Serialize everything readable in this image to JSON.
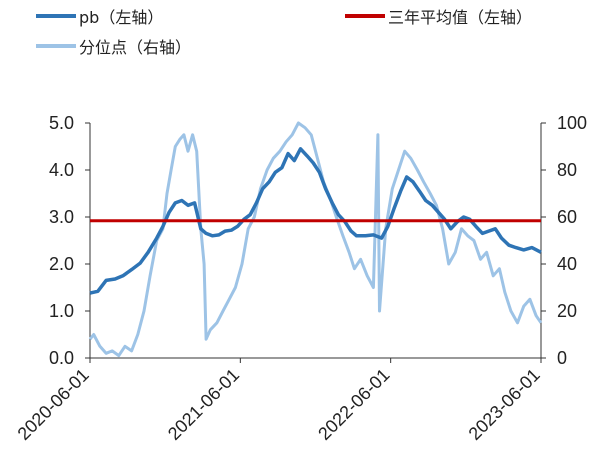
{
  "colors": {
    "pb": "#2e74b5",
    "avg": "#c00000",
    "percentile": "#9dc3e6"
  },
  "legend": [
    {
      "label": "pb（左轴）",
      "color": "#2e74b5"
    },
    {
      "label": "三年平均值（左轴）",
      "color": "#c00000"
    },
    {
      "label": "分位点（右轴）",
      "color": "#9dc3e6"
    }
  ],
  "chart_data": {
    "type": "line",
    "x_start": "2020-06-01",
    "x_end": "2023-06-01",
    "x_ticks": [
      "2020-06-01",
      "2021-06-01",
      "2022-06-01",
      "2023-06-01"
    ],
    "y_left": {
      "range": [
        0,
        5
      ],
      "ticks": [
        "0.0",
        "1.0",
        "2.0",
        "3.0",
        "4.0",
        "5.0"
      ]
    },
    "y_right": {
      "range": [
        0,
        100
      ],
      "ticks": [
        "0",
        "20",
        "40",
        "60",
        "80",
        "100"
      ]
    },
    "legend_position": "top",
    "grid": false,
    "series": [
      {
        "name": "pb（左轴）",
        "axis": "left",
        "points": [
          [
            "2020-06-01",
            1.38
          ],
          [
            "2020-06-20",
            1.42
          ],
          [
            "2020-07-10",
            1.65
          ],
          [
            "2020-08-01",
            1.68
          ],
          [
            "2020-08-20",
            1.75
          ],
          [
            "2020-09-10",
            1.88
          ],
          [
            "2020-10-01",
            2.02
          ],
          [
            "2020-10-20",
            2.25
          ],
          [
            "2020-11-10",
            2.55
          ],
          [
            "2020-11-25",
            2.8
          ],
          [
            "2020-12-10",
            3.1
          ],
          [
            "2020-12-25",
            3.3
          ],
          [
            "2021-01-10",
            3.35
          ],
          [
            "2021-01-25",
            3.25
          ],
          [
            "2021-02-10",
            3.3
          ],
          [
            "2021-02-25",
            2.75
          ],
          [
            "2021-03-10",
            2.65
          ],
          [
            "2021-03-25",
            2.6
          ],
          [
            "2021-04-10",
            2.62
          ],
          [
            "2021-04-25",
            2.7
          ],
          [
            "2021-05-10",
            2.72
          ],
          [
            "2021-05-25",
            2.8
          ],
          [
            "2021-06-10",
            2.95
          ],
          [
            "2021-06-25",
            3.05
          ],
          [
            "2021-07-10",
            3.3
          ],
          [
            "2021-07-25",
            3.6
          ],
          [
            "2021-08-10",
            3.75
          ],
          [
            "2021-08-25",
            3.95
          ],
          [
            "2021-09-10",
            4.05
          ],
          [
            "2021-09-25",
            4.35
          ],
          [
            "2021-10-10",
            4.2
          ],
          [
            "2021-10-25",
            4.45
          ],
          [
            "2021-11-10",
            4.3
          ],
          [
            "2021-11-25",
            4.15
          ],
          [
            "2021-12-10",
            3.95
          ],
          [
            "2021-12-25",
            3.6
          ],
          [
            "2022-01-10",
            3.3
          ],
          [
            "2022-01-25",
            3.05
          ],
          [
            "2022-02-10",
            2.9
          ],
          [
            "2022-02-25",
            2.7
          ],
          [
            "2022-03-10",
            2.6
          ],
          [
            "2022-04-01",
            2.6
          ],
          [
            "2022-04-20",
            2.62
          ],
          [
            "2022-05-10",
            2.55
          ],
          [
            "2022-05-25",
            2.8
          ],
          [
            "2022-06-10",
            3.2
          ],
          [
            "2022-06-25",
            3.55
          ],
          [
            "2022-07-10",
            3.85
          ],
          [
            "2022-07-25",
            3.75
          ],
          [
            "2022-08-10",
            3.55
          ],
          [
            "2022-08-25",
            3.35
          ],
          [
            "2022-09-10",
            3.25
          ],
          [
            "2022-09-25",
            3.1
          ],
          [
            "2022-10-10",
            2.95
          ],
          [
            "2022-10-25",
            2.75
          ],
          [
            "2022-11-10",
            2.9
          ],
          [
            "2022-11-25",
            3.0
          ],
          [
            "2022-12-10",
            2.95
          ],
          [
            "2022-12-25",
            2.8
          ],
          [
            "2023-01-10",
            2.65
          ],
          [
            "2023-01-25",
            2.7
          ],
          [
            "2023-02-10",
            2.75
          ],
          [
            "2023-02-25",
            2.55
          ],
          [
            "2023-03-15",
            2.4
          ],
          [
            "2023-04-01",
            2.35
          ],
          [
            "2023-04-20",
            2.3
          ],
          [
            "2023-05-10",
            2.35
          ],
          [
            "2023-06-01",
            2.25
          ]
        ]
      },
      {
        "name": "三年平均值（左轴）",
        "axis": "left",
        "points": [
          [
            "2020-06-01",
            2.92
          ],
          [
            "2023-06-01",
            2.92
          ]
        ]
      },
      {
        "name": "分位点（右轴）",
        "axis": "right",
        "points": [
          [
            "2020-06-01",
            8
          ],
          [
            "2020-06-10",
            10
          ],
          [
            "2020-06-25",
            5
          ],
          [
            "2020-07-10",
            2
          ],
          [
            "2020-07-25",
            3
          ],
          [
            "2020-08-10",
            1
          ],
          [
            "2020-08-25",
            5
          ],
          [
            "2020-09-10",
            3
          ],
          [
            "2020-09-25",
            10
          ],
          [
            "2020-10-10",
            20
          ],
          [
            "2020-10-25",
            35
          ],
          [
            "2020-11-10",
            50
          ],
          [
            "2020-11-25",
            55
          ],
          [
            "2020-12-05",
            70
          ],
          [
            "2020-12-15",
            80
          ],
          [
            "2020-12-25",
            90
          ],
          [
            "2021-01-05",
            93
          ],
          [
            "2021-01-15",
            95
          ],
          [
            "2021-01-25",
            88
          ],
          [
            "2021-02-05",
            95
          ],
          [
            "2021-02-15",
            88
          ],
          [
            "2021-02-25",
            55
          ],
          [
            "2021-03-05",
            40
          ],
          [
            "2021-03-10",
            8
          ],
          [
            "2021-03-20",
            12
          ],
          [
            "2021-04-05",
            15
          ],
          [
            "2021-04-20",
            20
          ],
          [
            "2021-05-05",
            25
          ],
          [
            "2021-05-20",
            30
          ],
          [
            "2021-06-05",
            40
          ],
          [
            "2021-06-20",
            55
          ],
          [
            "2021-07-05",
            60
          ],
          [
            "2021-07-20",
            72
          ],
          [
            "2021-08-05",
            80
          ],
          [
            "2021-08-20",
            85
          ],
          [
            "2021-09-05",
            88
          ],
          [
            "2021-09-20",
            92
          ],
          [
            "2021-10-05",
            95
          ],
          [
            "2021-10-20",
            100
          ],
          [
            "2021-11-05",
            98
          ],
          [
            "2021-11-20",
            95
          ],
          [
            "2021-12-05",
            85
          ],
          [
            "2021-12-20",
            75
          ],
          [
            "2022-01-05",
            68
          ],
          [
            "2022-01-20",
            60
          ],
          [
            "2022-02-05",
            52
          ],
          [
            "2022-02-20",
            45
          ],
          [
            "2022-03-05",
            38
          ],
          [
            "2022-03-20",
            42
          ],
          [
            "2022-04-05",
            35
          ],
          [
            "2022-04-20",
            30
          ],
          [
            "2022-05-01",
            95
          ],
          [
            "2022-05-05",
            20
          ],
          [
            "2022-05-20",
            55
          ],
          [
            "2022-06-05",
            72
          ],
          [
            "2022-06-20",
            80
          ],
          [
            "2022-07-05",
            88
          ],
          [
            "2022-07-20",
            85
          ],
          [
            "2022-08-05",
            80
          ],
          [
            "2022-08-20",
            75
          ],
          [
            "2022-09-05",
            70
          ],
          [
            "2022-09-20",
            65
          ],
          [
            "2022-10-05",
            55
          ],
          [
            "2022-10-20",
            40
          ],
          [
            "2022-11-05",
            45
          ],
          [
            "2022-11-20",
            55
          ],
          [
            "2022-12-05",
            52
          ],
          [
            "2022-12-20",
            50
          ],
          [
            "2023-01-05",
            42
          ],
          [
            "2023-01-20",
            45
          ],
          [
            "2023-02-05",
            35
          ],
          [
            "2023-02-20",
            38
          ],
          [
            "2023-03-05",
            28
          ],
          [
            "2023-03-20",
            20
          ],
          [
            "2023-04-05",
            15
          ],
          [
            "2023-04-20",
            22
          ],
          [
            "2023-05-05",
            25
          ],
          [
            "2023-05-20",
            18
          ],
          [
            "2023-06-01",
            15
          ]
        ]
      }
    ]
  }
}
